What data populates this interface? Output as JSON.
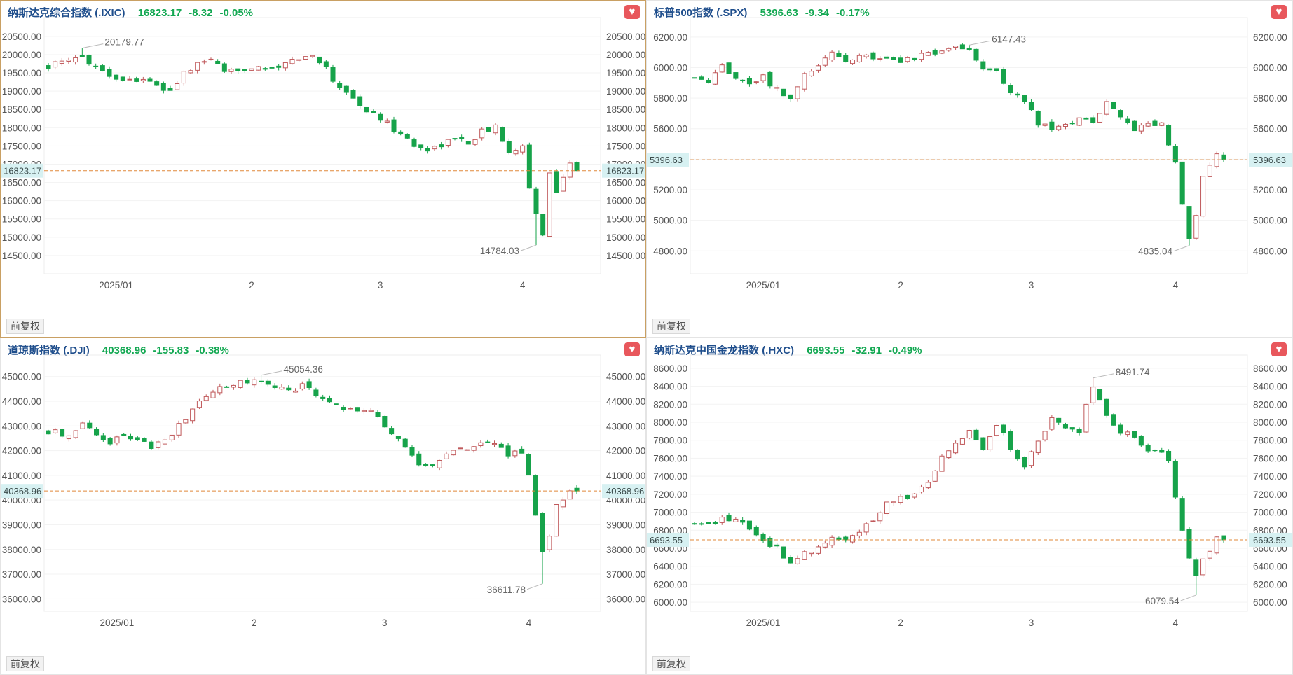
{
  "panels": [
    {
      "name": "纳斯达克综合指数",
      "code": "(.IXIC)",
      "price": "16823.17",
      "change": "-8.32",
      "change_pct": "-0.05%",
      "adjust_label": "前复权",
      "chart_data": {
        "type": "candlestick",
        "ylim": [
          14000,
          20900
        ],
        "yticks": [
          "20500.00",
          "20000.00",
          "19500.00",
          "19000.00",
          "18500.00",
          "18000.00",
          "17500.00",
          "17000.00",
          "16500.00",
          "16000.00",
          "15500.00",
          "15000.00",
          "14500.00"
        ],
        "xticks": [
          {
            "label": "2025/01",
            "index": 10
          },
          {
            "label": "2",
            "index": 30
          },
          {
            "label": "3",
            "index": 49
          },
          {
            "label": "4",
            "index": 70
          }
        ],
        "current": {
          "value": 16823.17,
          "label": "16823.17"
        },
        "high": {
          "value": 20179.77,
          "label": "20179.77",
          "index": 5
        },
        "low": {
          "value": 14784.03,
          "label": "14784.03",
          "index": 72
        },
        "anchors": [
          [
            0,
            19700
          ],
          [
            3,
            19800
          ],
          [
            5,
            19950
          ],
          [
            9,
            19450
          ],
          [
            11,
            19300
          ],
          [
            14,
            19350
          ],
          [
            16,
            19100
          ],
          [
            18,
            19000
          ],
          [
            20,
            19500
          ],
          [
            22,
            19700
          ],
          [
            24,
            19900
          ],
          [
            26,
            19450
          ],
          [
            28,
            19600
          ],
          [
            31,
            19700
          ],
          [
            33,
            19550
          ],
          [
            35,
            19750
          ],
          [
            37,
            19900
          ],
          [
            39,
            19950
          ],
          [
            41,
            19700
          ],
          [
            42,
            19300
          ],
          [
            44,
            19000
          ],
          [
            46,
            18600
          ],
          [
            48,
            18350
          ],
          [
            50,
            18100
          ],
          [
            52,
            17850
          ],
          [
            54,
            17500
          ],
          [
            56,
            17400
          ],
          [
            58,
            17550
          ],
          [
            60,
            17700
          ],
          [
            62,
            17600
          ],
          [
            64,
            17900
          ],
          [
            66,
            18000
          ],
          [
            68,
            17400
          ],
          [
            70,
            17500
          ],
          [
            71,
            16400
          ],
          [
            72,
            15600
          ],
          [
            73,
            15000
          ],
          [
            74,
            16700
          ],
          [
            75,
            16300
          ],
          [
            76,
            16600
          ],
          [
            77,
            17100
          ],
          [
            78,
            16823.17
          ]
        ]
      },
      "colors": {
        "up": "#c0595b",
        "down": "#16a34a"
      }
    },
    {
      "name": "标普500指数",
      "code": "(.SPX)",
      "price": "5396.63",
      "change": "-9.34",
      "change_pct": "-0.17%",
      "adjust_label": "前复权",
      "chart_data": {
        "type": "candlestick",
        "ylim": [
          4650,
          6300
        ],
        "yticks": [
          "6200.00",
          "6000.00",
          "5800.00",
          "5600.00",
          "5400.00",
          "5200.00",
          "5000.00",
          "4800.00"
        ],
        "xticks": [
          {
            "label": "2025/01",
            "index": 10
          },
          {
            "label": "2",
            "index": 30
          },
          {
            "label": "3",
            "index": 49
          },
          {
            "label": "4",
            "index": 70
          }
        ],
        "current": {
          "value": 5396.63,
          "label": "5396.63"
        },
        "high": {
          "value": 6147.43,
          "label": "6147.43",
          "index": 40
        },
        "low": {
          "value": 4835.04,
          "label": "4835.04",
          "index": 72
        },
        "anchors": [
          [
            0,
            5950
          ],
          [
            2,
            5900
          ],
          [
            4,
            6020
          ],
          [
            6,
            5920
          ],
          [
            8,
            5880
          ],
          [
            10,
            5950
          ],
          [
            12,
            5850
          ],
          [
            14,
            5790
          ],
          [
            16,
            5950
          ],
          [
            18,
            6020
          ],
          [
            20,
            6100
          ],
          [
            22,
            6040
          ],
          [
            24,
            6060
          ],
          [
            26,
            6070
          ],
          [
            28,
            6080
          ],
          [
            30,
            6050
          ],
          [
            32,
            6070
          ],
          [
            34,
            6090
          ],
          [
            36,
            6110
          ],
          [
            38,
            6130
          ],
          [
            40,
            6120
          ],
          [
            42,
            6010
          ],
          [
            44,
            5980
          ],
          [
            46,
            5850
          ],
          [
            48,
            5780
          ],
          [
            50,
            5640
          ],
          [
            52,
            5600
          ],
          [
            54,
            5620
          ],
          [
            56,
            5680
          ],
          [
            58,
            5640
          ],
          [
            60,
            5770
          ],
          [
            62,
            5690
          ],
          [
            64,
            5580
          ],
          [
            66,
            5640
          ],
          [
            68,
            5620
          ],
          [
            70,
            5400
          ],
          [
            71,
            5100
          ],
          [
            72,
            4900
          ],
          [
            73,
            5050
          ],
          [
            74,
            5300
          ],
          [
            75,
            5370
          ],
          [
            76,
            5420
          ],
          [
            77,
            5396.63
          ]
        ]
      },
      "colors": {
        "up": "#c0595b",
        "down": "#16a34a"
      }
    },
    {
      "name": "道琼斯指数",
      "code": "(.DJI)",
      "price": "40368.96",
      "change": "-155.83",
      "change_pct": "-0.38%",
      "adjust_label": "前复权",
      "chart_data": {
        "type": "candlestick",
        "ylim": [
          35500,
          45700
        ],
        "yticks": [
          "45000.00",
          "44000.00",
          "43000.00",
          "42000.00",
          "41000.00",
          "40000.00",
          "39000.00",
          "38000.00",
          "37000.00",
          "36000.00"
        ],
        "xticks": [
          {
            "label": "2025/01",
            "index": 10
          },
          {
            "label": "2",
            "index": 30
          },
          {
            "label": "3",
            "index": 49
          },
          {
            "label": "4",
            "index": 70
          }
        ],
        "current": {
          "value": 40368.96,
          "label": "40368.96"
        },
        "high": {
          "value": 45054.36,
          "label": "45054.36",
          "index": 31
        },
        "low": {
          "value": 36611.78,
          "label": "36611.78",
          "index": 72
        },
        "anchors": [
          [
            0,
            42800
          ],
          [
            3,
            42600
          ],
          [
            5,
            43200
          ],
          [
            7,
            42700
          ],
          [
            9,
            42300
          ],
          [
            11,
            42600
          ],
          [
            13,
            42400
          ],
          [
            15,
            42100
          ],
          [
            17,
            42500
          ],
          [
            19,
            43000
          ],
          [
            21,
            43600
          ],
          [
            23,
            44200
          ],
          [
            25,
            44500
          ],
          [
            27,
            44700
          ],
          [
            29,
            44800
          ],
          [
            31,
            44700
          ],
          [
            33,
            44500
          ],
          [
            35,
            44400
          ],
          [
            37,
            44600
          ],
          [
            39,
            44300
          ],
          [
            41,
            43900
          ],
          [
            43,
            43700
          ],
          [
            45,
            43600
          ],
          [
            47,
            43500
          ],
          [
            49,
            43000
          ],
          [
            51,
            42500
          ],
          [
            53,
            41800
          ],
          [
            55,
            41300
          ],
          [
            57,
            41600
          ],
          [
            59,
            41900
          ],
          [
            61,
            42100
          ],
          [
            63,
            42400
          ],
          [
            65,
            42300
          ],
          [
            67,
            41800
          ],
          [
            69,
            42000
          ],
          [
            70,
            41000
          ],
          [
            71,
            39500
          ],
          [
            72,
            38000
          ],
          [
            73,
            38600
          ],
          [
            74,
            39800
          ],
          [
            75,
            40000
          ],
          [
            76,
            40500
          ],
          [
            77,
            40368.96
          ]
        ]
      },
      "colors": {
        "up": "#c0595b",
        "down": "#16a34a"
      }
    },
    {
      "name": "纳斯达克中国金龙指数",
      "code": "(.HXC)",
      "price": "6693.55",
      "change": "-32.91",
      "change_pct": "-0.49%",
      "adjust_label": "前复权",
      "chart_data": {
        "type": "candlestick",
        "ylim": [
          5900,
          8700
        ],
        "yticks": [
          "8600.00",
          "8400.00",
          "8200.00",
          "8000.00",
          "7800.00",
          "7600.00",
          "7400.00",
          "7200.00",
          "7000.00",
          "6800.00",
          "6600.00",
          "6400.00",
          "6200.00",
          "6000.00"
        ],
        "xticks": [
          {
            "label": "2025/01",
            "index": 10
          },
          {
            "label": "2",
            "index": 30
          },
          {
            "label": "3",
            "index": 49
          },
          {
            "label": "4",
            "index": 70
          }
        ],
        "current": {
          "value": 6693.55,
          "label": "6693.55"
        },
        "high": {
          "value": 8491.74,
          "label": "8491.74",
          "index": 58
        },
        "low": {
          "value": 6079.54,
          "label": "6079.54",
          "index": 73
        },
        "anchors": [
          [
            0,
            6900
          ],
          [
            2,
            6850
          ],
          [
            4,
            6920
          ],
          [
            6,
            6950
          ],
          [
            8,
            6800
          ],
          [
            10,
            6700
          ],
          [
            12,
            6600
          ],
          [
            14,
            6450
          ],
          [
            16,
            6550
          ],
          [
            18,
            6600
          ],
          [
            20,
            6750
          ],
          [
            22,
            6700
          ],
          [
            24,
            6800
          ],
          [
            26,
            6900
          ],
          [
            28,
            7100
          ],
          [
            30,
            7150
          ],
          [
            32,
            7200
          ],
          [
            34,
            7350
          ],
          [
            36,
            7600
          ],
          [
            38,
            7800
          ],
          [
            40,
            7900
          ],
          [
            42,
            7700
          ],
          [
            44,
            8000
          ],
          [
            46,
            7700
          ],
          [
            48,
            7500
          ],
          [
            50,
            7800
          ],
          [
            52,
            8050
          ],
          [
            54,
            7950
          ],
          [
            56,
            7900
          ],
          [
            57,
            8200
          ],
          [
            58,
            8400
          ],
          [
            60,
            8100
          ],
          [
            62,
            7900
          ],
          [
            64,
            7850
          ],
          [
            66,
            7700
          ],
          [
            68,
            7650
          ],
          [
            69,
            7600
          ],
          [
            70,
            7200
          ],
          [
            71,
            6800
          ],
          [
            72,
            6500
          ],
          [
            73,
            6300
          ],
          [
            74,
            6450
          ],
          [
            75,
            6550
          ],
          [
            76,
            6750
          ],
          [
            77,
            6693.55
          ]
        ]
      },
      "colors": {
        "up": "#c0595b",
        "down": "#16a34a"
      }
    }
  ]
}
